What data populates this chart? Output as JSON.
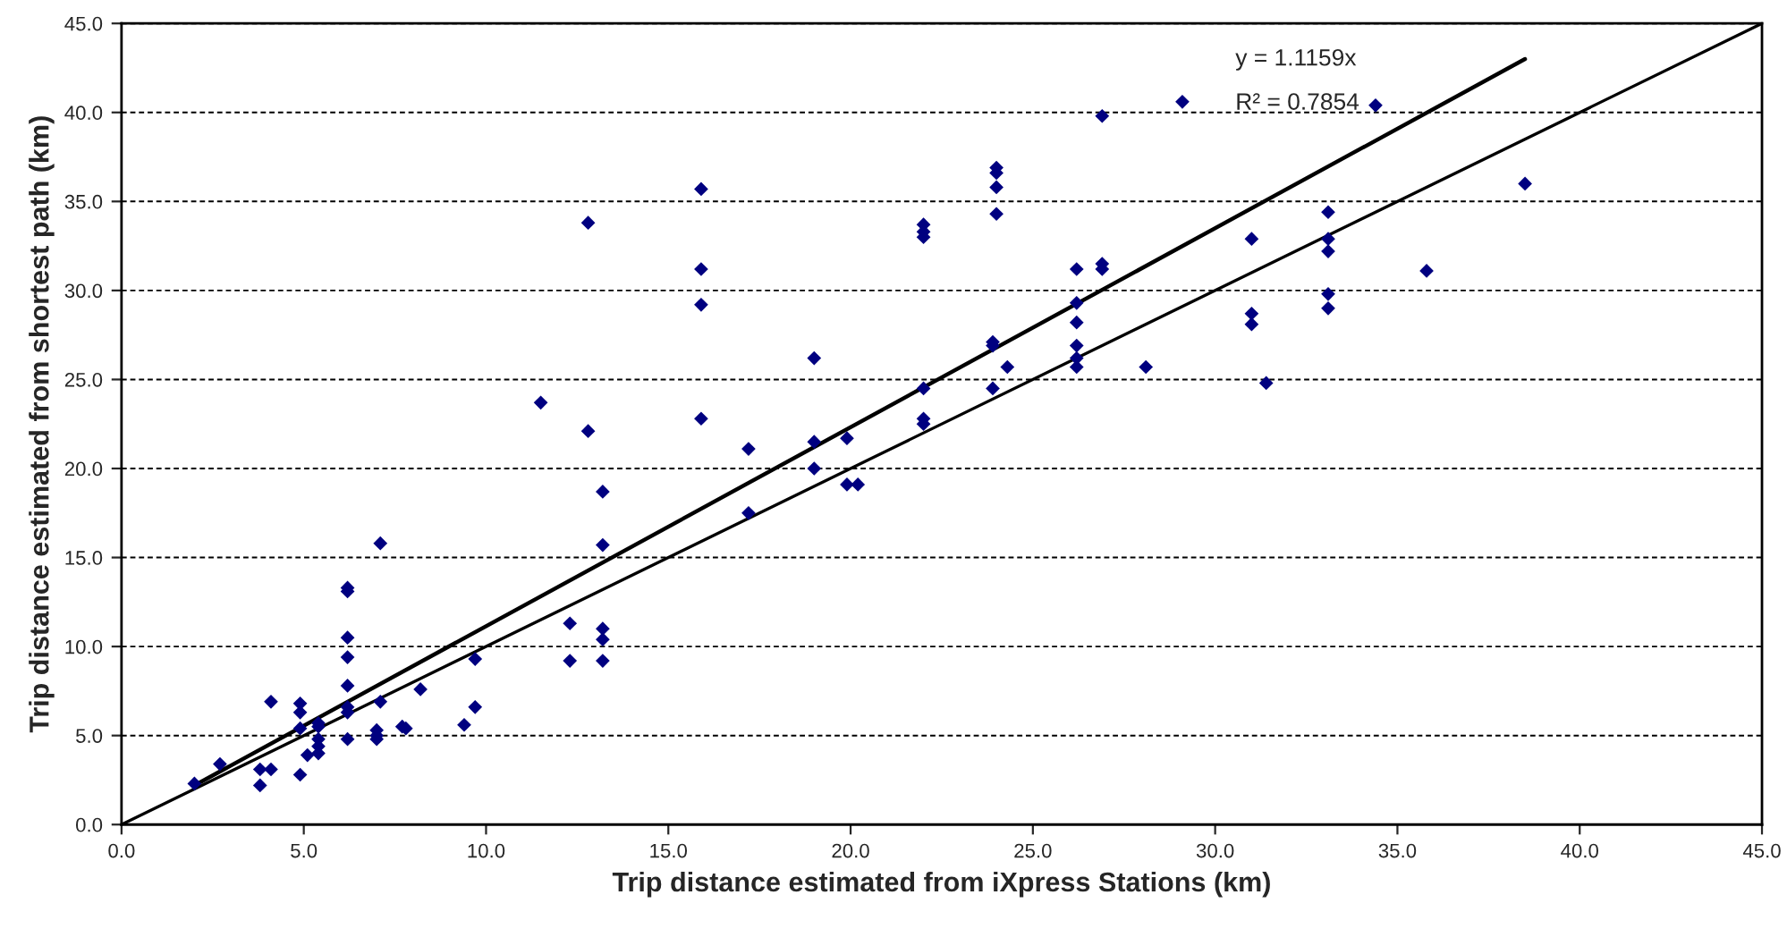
{
  "chart_data": {
    "type": "scatter",
    "xlabel": "Trip distance estimated from iXpress Stations (km)",
    "ylabel": "Trip distance estimated from shortest path (km)",
    "annotations": [
      "y = 1.1159x",
      "R² = 0.7854"
    ],
    "xlim": [
      0,
      45
    ],
    "ylim": [
      0,
      45
    ],
    "xticks": [
      {
        "value": 0,
        "label": "0.0"
      },
      {
        "value": 5,
        "label": "5.0"
      },
      {
        "value": 10,
        "label": "10.0"
      },
      {
        "value": 15,
        "label": "15.0"
      },
      {
        "value": 20,
        "label": "20.0"
      },
      {
        "value": 25,
        "label": "25.0"
      },
      {
        "value": 30,
        "label": "30.0"
      },
      {
        "value": 35,
        "label": "35.0"
      },
      {
        "value": 40,
        "label": "40.0"
      },
      {
        "value": 45,
        "label": "45.0"
      }
    ],
    "yticks": [
      {
        "value": 0,
        "label": "0.0"
      },
      {
        "value": 5,
        "label": "5.0"
      },
      {
        "value": 10,
        "label": "10.0"
      },
      {
        "value": 15,
        "label": "15.0"
      },
      {
        "value": 20,
        "label": "20.0"
      },
      {
        "value": 25,
        "label": "25.0"
      },
      {
        "value": 30,
        "label": "30.0"
      },
      {
        "value": 35,
        "label": "35.0"
      },
      {
        "value": 40,
        "label": "40.0"
      },
      {
        "value": 45,
        "label": "45.0"
      }
    ],
    "grid": "y",
    "series": [
      {
        "marker": "diamond",
        "color": "#000080",
        "x": [
          2.0,
          2.7,
          3.8,
          3.8,
          4.1,
          4.1,
          4.9,
          4.9,
          4.9,
          4.9,
          5.1,
          5.4,
          5.4,
          5.4,
          5.4,
          5.4,
          6.2,
          6.2,
          6.2,
          6.2,
          6.2,
          6.2,
          6.2,
          6.2,
          7.1,
          7.1,
          7.0,
          7.0,
          7.0,
          7.7,
          7.8,
          8.2,
          9.4,
          9.7,
          9.7,
          11.5,
          12.3,
          12.3,
          12.8,
          12.8,
          13.2,
          13.2,
          13.2,
          13.2,
          13.2,
          15.9,
          15.9,
          15.9,
          15.9,
          17.2,
          17.2,
          19.0,
          19.0,
          19.0,
          19.9,
          19.9,
          20.2,
          22.0,
          22.0,
          22.0,
          22.0,
          22.0,
          22.0,
          24.0,
          24.0,
          24.0,
          24.0,
          23.9,
          23.9,
          23.9,
          24.3,
          26.2,
          26.2,
          26.2,
          26.2,
          26.2,
          26.2,
          26.9,
          26.9,
          26.9,
          28.1,
          29.1,
          31.0,
          31.0,
          31.0,
          31.4,
          33.1,
          33.1,
          33.1,
          33.1,
          33.1,
          34.4,
          35.8,
          38.5
        ],
        "values": [
          2.3,
          3.4,
          3.1,
          2.2,
          3.1,
          6.9,
          6.8,
          6.3,
          5.4,
          2.8,
          3.9,
          5.7,
          5.5,
          4.8,
          4.4,
          4.0,
          13.3,
          13.1,
          10.5,
          9.4,
          7.8,
          6.6,
          6.3,
          4.8,
          15.8,
          6.9,
          5.3,
          5.0,
          4.8,
          5.5,
          5.4,
          7.6,
          5.6,
          9.3,
          6.6,
          23.7,
          11.3,
          9.2,
          33.8,
          22.1,
          18.7,
          15.7,
          11.0,
          10.4,
          9.2,
          35.7,
          31.2,
          29.2,
          22.8,
          21.1,
          17.5,
          26.2,
          21.5,
          20.0,
          21.7,
          19.1,
          19.1,
          33.7,
          33.3,
          33.0,
          24.5,
          22.8,
          22.5,
          36.9,
          36.6,
          35.8,
          34.3,
          27.1,
          26.9,
          24.5,
          25.7,
          31.2,
          29.3,
          28.2,
          26.9,
          26.2,
          25.7,
          39.8,
          31.5,
          31.2,
          25.7,
          40.6,
          32.9,
          28.7,
          28.1,
          24.8,
          34.4,
          32.9,
          32.2,
          29.8,
          29.0,
          40.4,
          31.1,
          36.0
        ]
      },
      {
        "type": "line",
        "marker": "none",
        "color": "#000000",
        "x": [
          2.0,
          38.5
        ],
        "values": [
          2.2,
          43.0
        ]
      },
      {
        "type": "line",
        "marker": "none",
        "color": "#000000",
        "x": [
          0,
          45
        ],
        "values": [
          0,
          45
        ]
      }
    ]
  }
}
